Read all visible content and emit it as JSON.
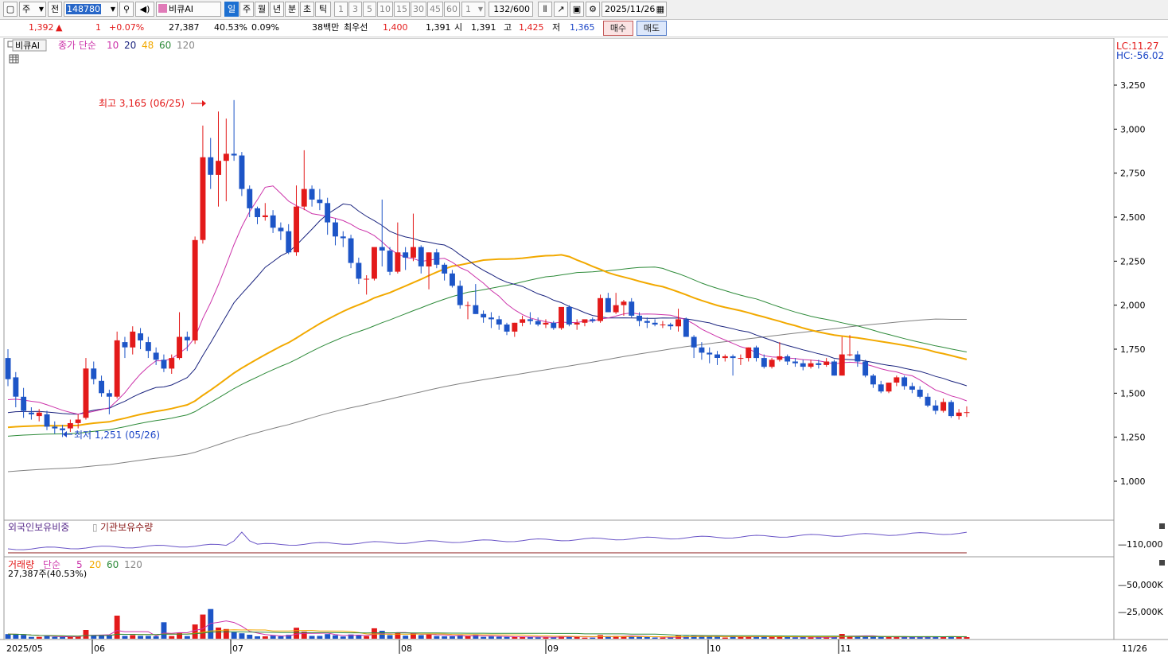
{
  "toolbar": {
    "period_type": "주",
    "prev": "전",
    "code": "148780",
    "stock_name": "비큐AI",
    "periods": [
      "일",
      "주",
      "월",
      "년",
      "분",
      "초",
      "틱"
    ],
    "active_period": "일",
    "minute_options": [
      "1",
      "3",
      "5",
      "10",
      "15",
      "30",
      "45",
      "60"
    ],
    "custom_value": "1",
    "count": "132/600",
    "date": "2025/11/26"
  },
  "info": {
    "price": "1,392",
    "change_symbol": "▲",
    "change": "1",
    "change_pct": "+0.07%",
    "volume": "27,387",
    "volume_ratio": "40.53%",
    "turnover": "0.09%",
    "amount": "38백만",
    "best_bid_label": "최우선",
    "best_bid": "1,400",
    "best_ask": "1,391",
    "open_label": "시",
    "open": "1,391",
    "high_label": "고",
    "high": "1,425",
    "low_label": "저",
    "low": "1,365",
    "buy_label": "매수",
    "sell_label": "매도"
  },
  "price_panel": {
    "name": "비큐AI",
    "ma_label": "종가 단순",
    "ma_periods": [
      "10",
      "20",
      "48",
      "60",
      "120"
    ],
    "lc": "LC:11.27",
    "hc": "HC:-56.02",
    "high_annotation": "최고 3,165 (06/25)",
    "low_annotation": "최저 1,251 (05/26)",
    "y_ticks": [
      "3,250",
      "3,000",
      "2,750",
      "2,500",
      "2,250",
      "2,000",
      "1,750",
      "1,500",
      "1,250",
      "1,000"
    ]
  },
  "foreign_panel": {
    "label1": "외국인보유비중",
    "label2": "기관보유수량",
    "tick": "110,000"
  },
  "volume_panel": {
    "label": "거래량",
    "ma_label": "단순",
    "ma_periods": [
      "5",
      "20",
      "60",
      "120"
    ],
    "current": "27,387주(40.53%)",
    "y_ticks": [
      "50,000K",
      "25,000K"
    ]
  },
  "x_axis": [
    "2025/05",
    "06",
    "07",
    "08",
    "09",
    "10",
    "11",
    "11/26"
  ],
  "chart_data": {
    "type": "candlestick",
    "title": "비큐AI",
    "ylim": [
      800,
      3400
    ],
    "ma_colors": {
      "10": "#cc33aa",
      "20": "#1a237e",
      "48": "#f2a900",
      "60": "#2e8b3a",
      "120": "#808080"
    },
    "series_ohlc_approx": "daily candles May–Nov 2025, high 3165 on 06/25, low 1251 on 05/26",
    "candles": [
      [
        1700,
        1750,
        1540,
        1580
      ],
      [
        1590,
        1620,
        1420,
        1480
      ],
      [
        1480,
        1530,
        1360,
        1400
      ],
      [
        1390,
        1420,
        1350,
        1380
      ],
      [
        1370,
        1410,
        1340,
        1390
      ],
      [
        1380,
        1400,
        1290,
        1310
      ],
      [
        1310,
        1340,
        1270,
        1300
      ],
      [
        1300,
        1320,
        1251,
        1290
      ],
      [
        1300,
        1350,
        1280,
        1330
      ],
      [
        1330,
        1380,
        1300,
        1350
      ],
      [
        1360,
        1700,
        1350,
        1640
      ],
      [
        1640,
        1680,
        1550,
        1580
      ],
      [
        1570,
        1600,
        1480,
        1500
      ],
      [
        1500,
        1520,
        1380,
        1480
      ],
      [
        1480,
        1850,
        1470,
        1800
      ],
      [
        1790,
        1820,
        1700,
        1760
      ],
      [
        1760,
        1880,
        1720,
        1850
      ],
      [
        1840,
        1870,
        1750,
        1800
      ],
      [
        1790,
        1820,
        1700,
        1740
      ],
      [
        1730,
        1760,
        1660,
        1690
      ],
      [
        1690,
        1720,
        1620,
        1640
      ],
      [
        1640,
        1720,
        1610,
        1700
      ],
      [
        1700,
        1960,
        1690,
        1820
      ],
      [
        1820,
        1850,
        1740,
        1800
      ],
      [
        1800,
        2390,
        1780,
        2370
      ],
      [
        2370,
        3020,
        2350,
        2840
      ],
      [
        2840,
        2950,
        2660,
        2740
      ],
      [
        2740,
        3100,
        2560,
        2820
      ],
      [
        2820,
        3060,
        2590,
        2860
      ],
      [
        2860,
        3165,
        2820,
        2850
      ],
      [
        2850,
        2870,
        2620,
        2660
      ],
      [
        2660,
        2680,
        2500,
        2550
      ],
      [
        2550,
        2560,
        2460,
        2500
      ],
      [
        2500,
        2580,
        2480,
        2510
      ],
      [
        2510,
        2540,
        2410,
        2440
      ],
      [
        2440,
        2470,
        2370,
        2420
      ],
      [
        2420,
        2460,
        2290,
        2300
      ],
      [
        2300,
        2680,
        2280,
        2560
      ],
      [
        2560,
        2880,
        2540,
        2660
      ],
      [
        2660,
        2680,
        2560,
        2600
      ],
      [
        2600,
        2660,
        2540,
        2580
      ],
      [
        2580,
        2610,
        2400,
        2470
      ],
      [
        2470,
        2490,
        2340,
        2390
      ],
      [
        2390,
        2420,
        2330,
        2380
      ],
      [
        2380,
        2400,
        2210,
        2240
      ],
      [
        2240,
        2270,
        2120,
        2150
      ],
      [
        2150,
        2170,
        2060,
        2150
      ],
      [
        2150,
        2320,
        2140,
        2330
      ],
      [
        2330,
        2600,
        2220,
        2310
      ],
      [
        2310,
        2330,
        2170,
        2190
      ],
      [
        2190,
        2470,
        2180,
        2300
      ],
      [
        2300,
        2330,
        2200,
        2270
      ],
      [
        2270,
        2520,
        2250,
        2330
      ],
      [
        2330,
        2340,
        2180,
        2220
      ],
      [
        2220,
        2300,
        2090,
        2300
      ],
      [
        2300,
        2320,
        2210,
        2230
      ],
      [
        2230,
        2240,
        2140,
        2180
      ],
      [
        2180,
        2200,
        2100,
        2110
      ],
      [
        2110,
        2140,
        1980,
        2000
      ],
      [
        2000,
        2020,
        1920,
        2000
      ],
      [
        2000,
        2120,
        1950,
        1950
      ],
      [
        1950,
        1970,
        1900,
        1930
      ],
      [
        1930,
        1960,
        1870,
        1920
      ],
      [
        1920,
        1940,
        1860,
        1890
      ],
      [
        1890,
        1900,
        1830,
        1850
      ],
      [
        1850,
        1900,
        1820,
        1900
      ],
      [
        1900,
        1940,
        1880,
        1920
      ],
      [
        1920,
        1960,
        1890,
        1910
      ],
      [
        1910,
        1930,
        1880,
        1890
      ],
      [
        1890,
        1920,
        1870,
        1900
      ],
      [
        1900,
        1910,
        1860,
        1870
      ],
      [
        1870,
        1980,
        1860,
        1990
      ],
      [
        1990,
        2000,
        1880,
        1890
      ],
      [
        1890,
        1920,
        1860,
        1900
      ],
      [
        1900,
        1910,
        1880,
        1920
      ],
      [
        1920,
        1930,
        1900,
        1910
      ],
      [
        1910,
        2060,
        1900,
        2040
      ],
      [
        2040,
        2070,
        1960,
        1960
      ],
      [
        1960,
        2070,
        1950,
        2000
      ],
      [
        2000,
        2030,
        1940,
        2020
      ],
      [
        2020,
        2040,
        1930,
        1940
      ],
      [
        1940,
        1960,
        1880,
        1910
      ],
      [
        1910,
        1930,
        1870,
        1900
      ],
      [
        1900,
        1920,
        1880,
        1890
      ],
      [
        1890,
        1910,
        1870,
        1890
      ],
      [
        1890,
        1900,
        1860,
        1880
      ],
      [
        1880,
        1980,
        1850,
        1920
      ],
      [
        1920,
        1930,
        1820,
        1820
      ],
      [
        1820,
        1830,
        1700,
        1760
      ],
      [
        1760,
        1790,
        1690,
        1730
      ],
      [
        1730,
        1760,
        1670,
        1720
      ],
      [
        1720,
        1740,
        1660,
        1700
      ],
      [
        1700,
        1720,
        1680,
        1710
      ],
      [
        1710,
        1720,
        1600,
        1700
      ],
      [
        1700,
        1720,
        1660,
        1700
      ],
      [
        1700,
        1760,
        1680,
        1760
      ],
      [
        1760,
        1770,
        1680,
        1700
      ],
      [
        1700,
        1720,
        1640,
        1650
      ],
      [
        1650,
        1700,
        1640,
        1690
      ],
      [
        1690,
        1790,
        1680,
        1710
      ],
      [
        1710,
        1720,
        1660,
        1680
      ],
      [
        1680,
        1700,
        1650,
        1670
      ],
      [
        1670,
        1690,
        1630,
        1650
      ],
      [
        1650,
        1690,
        1640,
        1670
      ],
      [
        1670,
        1690,
        1640,
        1660
      ],
      [
        1660,
        1700,
        1650,
        1680
      ],
      [
        1680,
        1690,
        1600,
        1600
      ],
      [
        1600,
        1820,
        1600,
        1720
      ],
      [
        1720,
        1830,
        1710,
        1720
      ],
      [
        1720,
        1740,
        1650,
        1680
      ],
      [
        1680,
        1690,
        1590,
        1600
      ],
      [
        1600,
        1610,
        1530,
        1550
      ],
      [
        1550,
        1570,
        1500,
        1510
      ],
      [
        1510,
        1560,
        1500,
        1560
      ],
      [
        1560,
        1600,
        1540,
        1590
      ],
      [
        1590,
        1600,
        1520,
        1540
      ],
      [
        1540,
        1560,
        1500,
        1520
      ],
      [
        1520,
        1540,
        1470,
        1480
      ],
      [
        1480,
        1500,
        1420,
        1430
      ],
      [
        1430,
        1460,
        1380,
        1400
      ],
      [
        1400,
        1470,
        1390,
        1450
      ],
      [
        1450,
        1460,
        1360,
        1370
      ],
      [
        1370,
        1410,
        1350,
        1390
      ],
      [
        1391,
        1425,
        1365,
        1392
      ]
    ]
  }
}
